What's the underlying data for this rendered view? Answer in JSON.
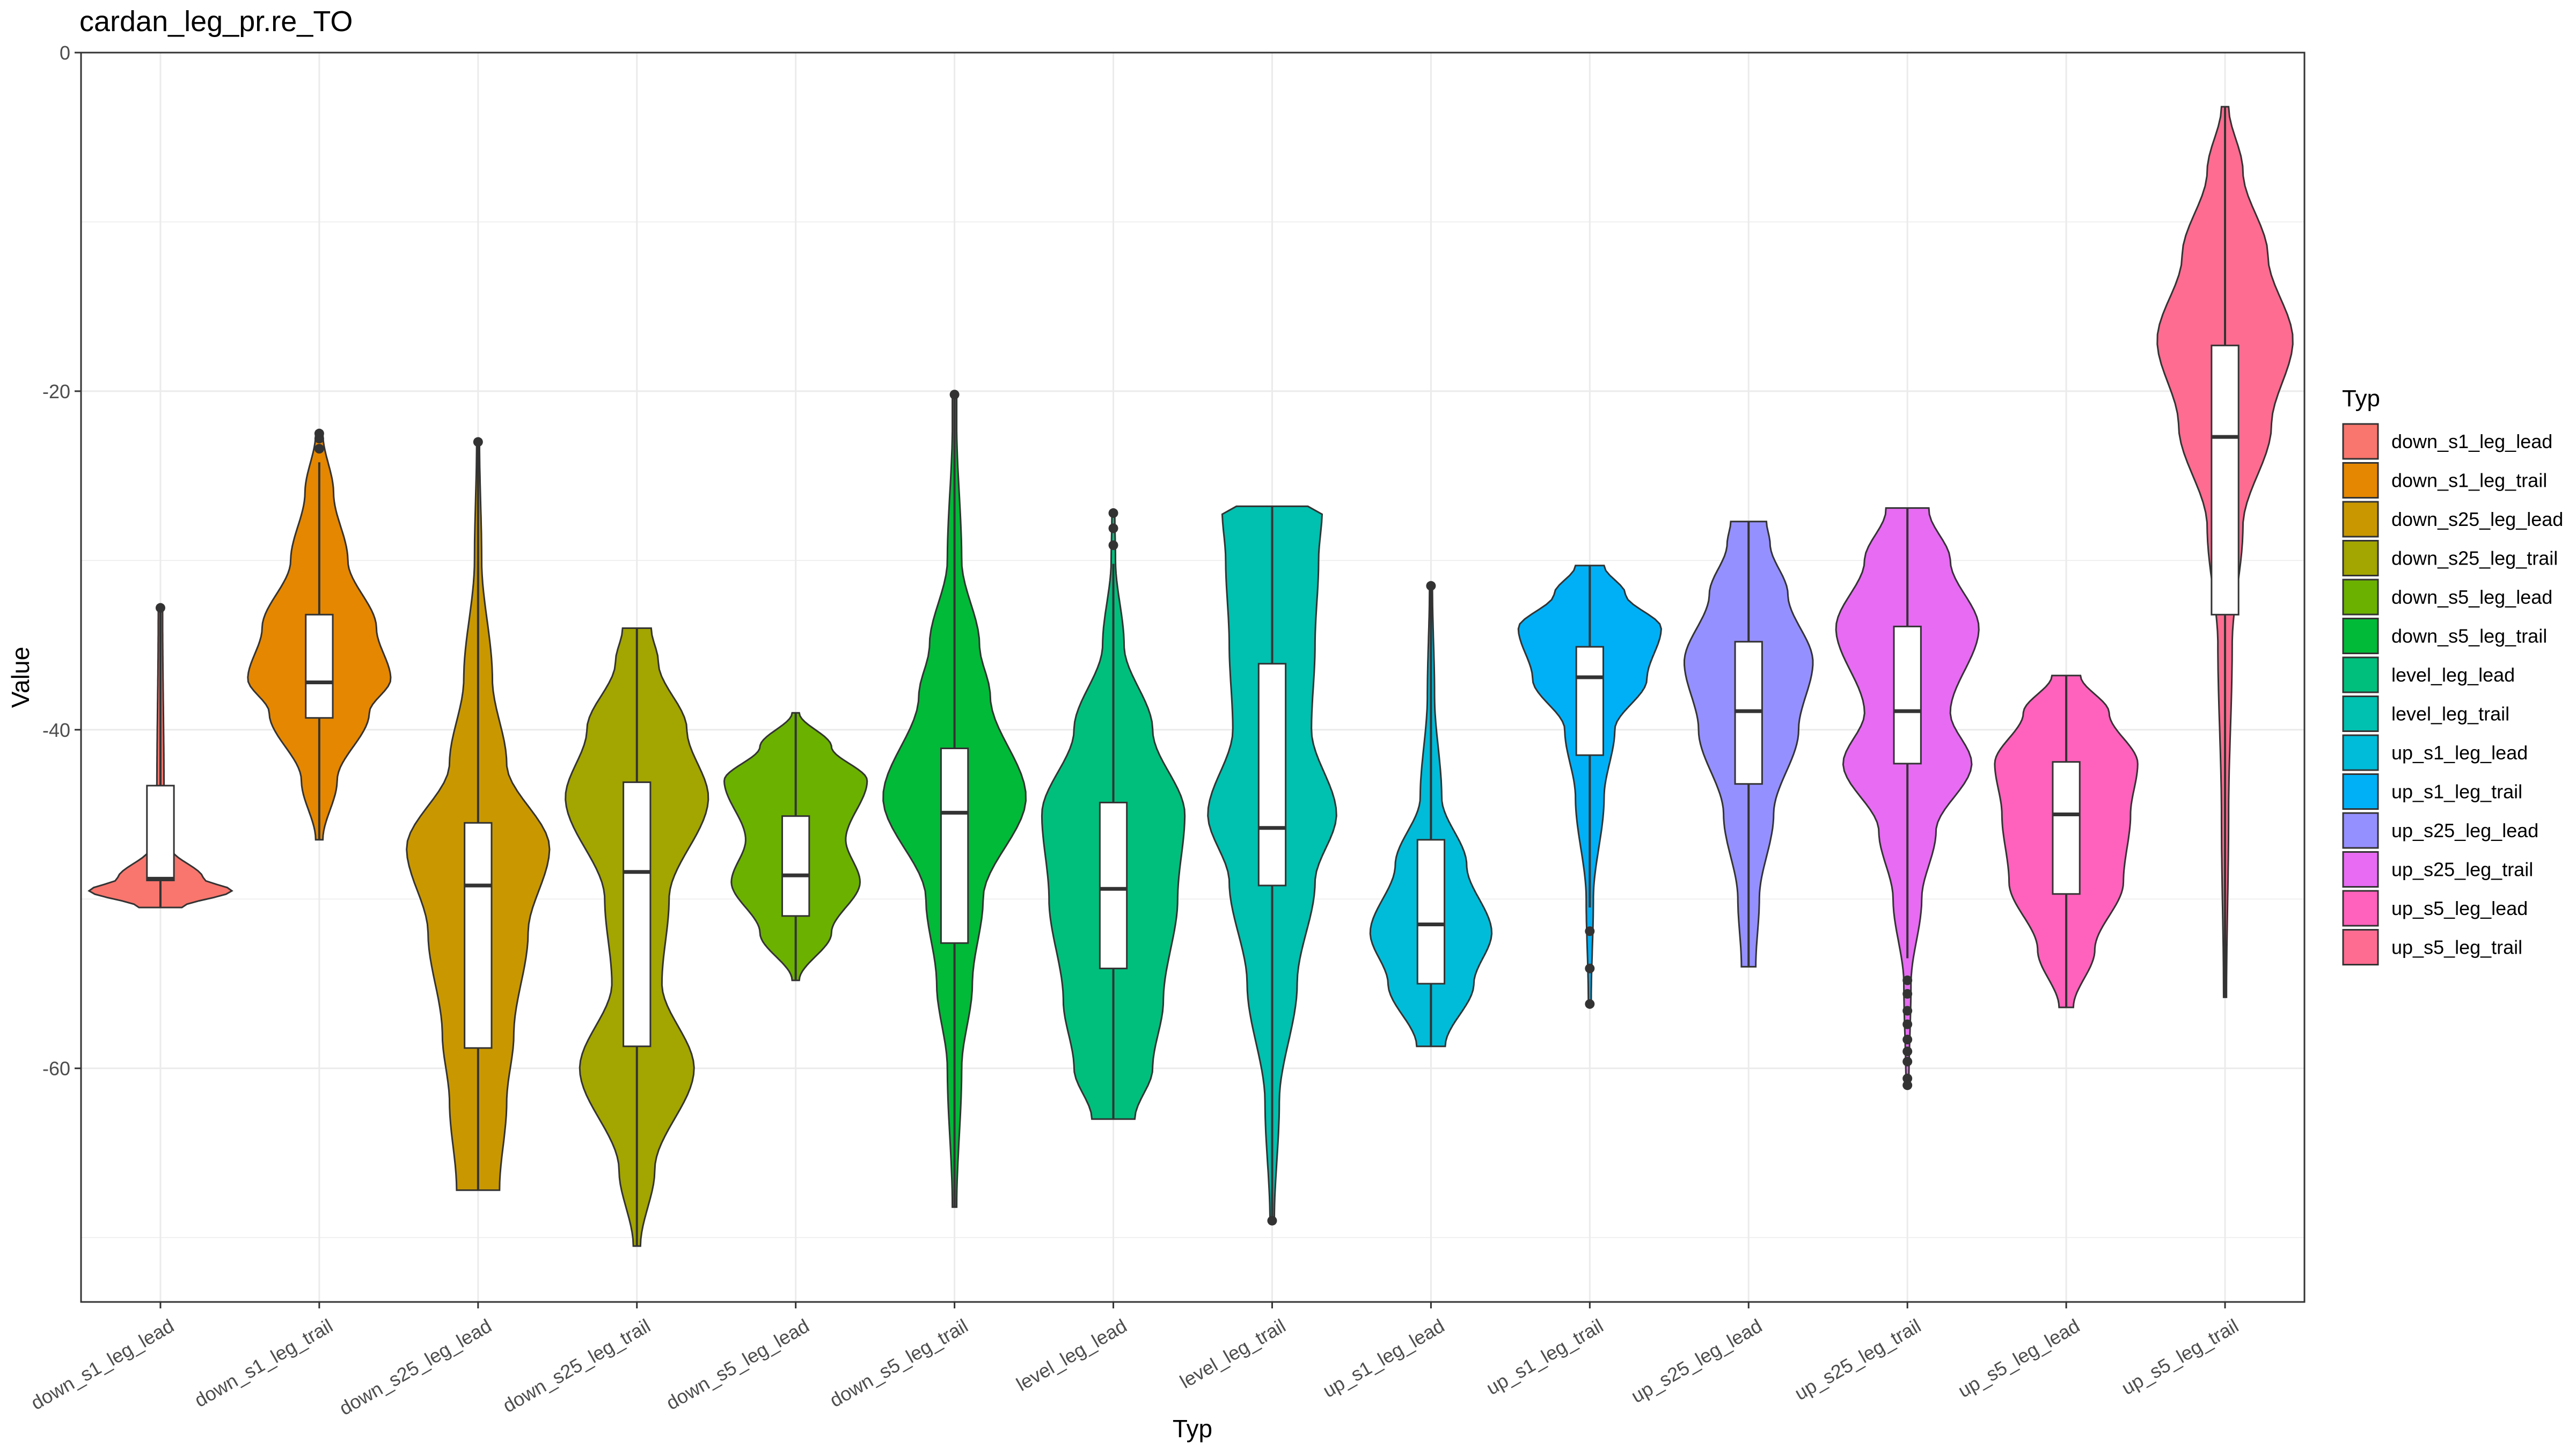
{
  "chart_data": {
    "type": "violin",
    "title": "cardan_leg_pr.re_TO",
    "xlabel": "Typ",
    "ylabel": "Value",
    "ylim": [
      -73.8,
      0
    ],
    "y_ticks": [
      0,
      -20,
      -40,
      -60
    ],
    "grid": true,
    "legend": {
      "title": "Typ",
      "position": "right"
    },
    "categories": [
      "down_s1_leg_lead",
      "down_s1_leg_trail",
      "down_s25_leg_lead",
      "down_s25_leg_trail",
      "down_s5_leg_lead",
      "down_s5_leg_trail",
      "level_leg_lead",
      "level_leg_trail",
      "up_s1_leg_lead",
      "up_s1_leg_trail",
      "up_s25_leg_lead",
      "up_s25_leg_trail",
      "up_s5_leg_lead",
      "up_s5_leg_trail"
    ],
    "series": [
      {
        "name": "down_s1_leg_lead",
        "color": "#F8766D",
        "min": -50.5,
        "max": -32.8,
        "q1": -48.9,
        "median": -48.8,
        "q3": -43.3,
        "whisker_low": -50.5,
        "whisker_high": -32.8,
        "outliers": [
          -32.8
        ],
        "density": [
          [
            -50.5,
            0.3
          ],
          [
            -49.5,
            1.0
          ],
          [
            -48.8,
            0.6
          ],
          [
            -47,
            0.15
          ],
          [
            -44,
            0.05
          ],
          [
            -33,
            0.03
          ]
        ]
      },
      {
        "name": "down_s1_leg_trail",
        "color": "#E58700",
        "min": -46.5,
        "max": -22.5,
        "q1": -39.3,
        "median": -37.2,
        "q3": -33.2,
        "whisker_low": -46.5,
        "whisker_high": -24.2,
        "outliers": [
          -22.5,
          -22.8,
          -23.4
        ],
        "density": [
          [
            -46.5,
            0.05
          ],
          [
            -43,
            0.25
          ],
          [
            -39,
            0.7
          ],
          [
            -37,
            1.0
          ],
          [
            -34,
            0.8
          ],
          [
            -30,
            0.4
          ],
          [
            -26,
            0.2
          ],
          [
            -22.5,
            0.05
          ]
        ]
      },
      {
        "name": "down_s25_leg_lead",
        "color": "#C99800",
        "min": -67.2,
        "max": -23.0,
        "q1": -58.8,
        "median": -49.2,
        "q3": -45.5,
        "whisker_low": -67.2,
        "whisker_high": -23.0,
        "outliers": [
          -23.0
        ],
        "density": [
          [
            -67.2,
            0.3
          ],
          [
            -62,
            0.4
          ],
          [
            -58,
            0.5
          ],
          [
            -52,
            0.7
          ],
          [
            -47,
            1.0
          ],
          [
            -42,
            0.4
          ],
          [
            -37,
            0.2
          ],
          [
            -30,
            0.05
          ],
          [
            -23,
            0.02
          ]
        ]
      },
      {
        "name": "down_s25_leg_trail",
        "color": "#A3A500",
        "min": -70.5,
        "max": -34.0,
        "q1": -58.7,
        "median": -48.4,
        "q3": -43.1,
        "whisker_low": -70.5,
        "whisker_high": -34.0,
        "outliers": [],
        "density": [
          [
            -70.5,
            0.05
          ],
          [
            -66,
            0.25
          ],
          [
            -60,
            0.8
          ],
          [
            -55,
            0.35
          ],
          [
            -50,
            0.45
          ],
          [
            -44,
            1.0
          ],
          [
            -40,
            0.7
          ],
          [
            -36,
            0.3
          ],
          [
            -34,
            0.2
          ]
        ]
      },
      {
        "name": "down_s5_leg_lead",
        "color": "#6BB100",
        "min": -54.8,
        "max": -39.0,
        "q1": -51.0,
        "median": -48.6,
        "q3": -45.1,
        "whisker_low": -54.8,
        "whisker_high": -39.0,
        "outliers": [],
        "density": [
          [
            -54.8,
            0.05
          ],
          [
            -52,
            0.5
          ],
          [
            -49,
            0.9
          ],
          [
            -46.5,
            0.7
          ],
          [
            -43,
            1.0
          ],
          [
            -41,
            0.5
          ],
          [
            -39,
            0.05
          ]
        ]
      },
      {
        "name": "down_s5_leg_trail",
        "color": "#00BA38",
        "min": -68.2,
        "max": -20.2,
        "q1": -52.6,
        "median": -44.9,
        "q3": -41.1,
        "whisker_low": -68.2,
        "whisker_high": -20.2,
        "outliers": [
          -20.2
        ],
        "density": [
          [
            -68.2,
            0.03
          ],
          [
            -60,
            0.1
          ],
          [
            -55,
            0.25
          ],
          [
            -50,
            0.4
          ],
          [
            -44,
            1.0
          ],
          [
            -38,
            0.5
          ],
          [
            -35,
            0.35
          ],
          [
            -30,
            0.1
          ],
          [
            -22,
            0.03
          ]
        ]
      },
      {
        "name": "level_leg_lead",
        "color": "#00BF7D",
        "min": -63.0,
        "max": -27.2,
        "q1": -54.1,
        "median": -49.4,
        "q3": -44.3,
        "whisker_low": -63.0,
        "whisker_high": -30.2,
        "outliers": [
          -27.2,
          -28.1,
          -29.1
        ],
        "density": [
          [
            -63,
            0.3
          ],
          [
            -60,
            0.55
          ],
          [
            -56,
            0.7
          ],
          [
            -50,
            0.9
          ],
          [
            -45,
            1.0
          ],
          [
            -40,
            0.55
          ],
          [
            -35,
            0.15
          ],
          [
            -30,
            0.03
          ],
          [
            -27.2,
            0.02
          ]
        ]
      },
      {
        "name": "level_leg_trail",
        "color": "#00C0AF",
        "min": -69.0,
        "max": -26.8,
        "q1": -49.2,
        "median": -45.8,
        "q3": -36.1,
        "whisker_low": -69.0,
        "whisker_high": -26.8,
        "outliers": [
          -69.0
        ],
        "density": [
          [
            -69,
            0.03
          ],
          [
            -62,
            0.1
          ],
          [
            -55,
            0.35
          ],
          [
            -49,
            0.6
          ],
          [
            -45,
            0.9
          ],
          [
            -40,
            0.55
          ],
          [
            -35,
            0.6
          ],
          [
            -30,
            0.65
          ],
          [
            -27,
            0.7
          ],
          [
            -26.8,
            0.5
          ]
        ]
      },
      {
        "name": "up_s1_leg_lead",
        "color": "#00BCD8",
        "min": -58.7,
        "max": -31.5,
        "q1": -55.0,
        "median": -51.5,
        "q3": -46.5,
        "whisker_low": -58.7,
        "whisker_high": -31.5,
        "outliers": [
          -31.5
        ],
        "density": [
          [
            -58.7,
            0.2
          ],
          [
            -55,
            0.6
          ],
          [
            -52,
            0.85
          ],
          [
            -48,
            0.5
          ],
          [
            -44,
            0.15
          ],
          [
            -38,
            0.05
          ],
          [
            -31.5,
            0.02
          ]
        ]
      },
      {
        "name": "up_s1_leg_trail",
        "color": "#00B0F6",
        "min": -56.2,
        "max": -30.3,
        "q1": -41.5,
        "median": -36.9,
        "q3": -35.1,
        "whisker_low": -50.5,
        "whisker_high": -30.3,
        "outliers": [
          -51.9,
          -54.1,
          -56.2
        ],
        "density": [
          [
            -56,
            0.02
          ],
          [
            -50,
            0.05
          ],
          [
            -44,
            0.2
          ],
          [
            -40,
            0.35
          ],
          [
            -37,
            0.8
          ],
          [
            -34,
            1.0
          ],
          [
            -32,
            0.5
          ],
          [
            -30.3,
            0.2
          ]
        ]
      },
      {
        "name": "up_s25_leg_lead",
        "color": "#9590FF",
        "min": -54.0,
        "max": -27.7,
        "q1": -43.2,
        "median": -38.9,
        "q3": -34.8,
        "whisker_low": -54.0,
        "whisker_high": -27.7,
        "outliers": [],
        "density": [
          [
            -54,
            0.1
          ],
          [
            -50,
            0.15
          ],
          [
            -45,
            0.35
          ],
          [
            -40,
            0.7
          ],
          [
            -36,
            0.9
          ],
          [
            -32,
            0.55
          ],
          [
            -29,
            0.3
          ],
          [
            -27.7,
            0.25
          ]
        ]
      },
      {
        "name": "up_s25_leg_trail",
        "color": "#E76BF3",
        "min": -61.0,
        "max": -26.9,
        "q1": -42.0,
        "median": -38.9,
        "q3": -33.9,
        "whisker_low": -53.5,
        "whisker_high": -26.9,
        "outliers": [
          -54.8,
          -55.6,
          -56.6,
          -57.4,
          -58.3,
          -59.0,
          -59.6,
          -60.6,
          -61.0
        ],
        "density": [
          [
            -61,
            0.02
          ],
          [
            -55,
            0.05
          ],
          [
            -50,
            0.2
          ],
          [
            -46,
            0.4
          ],
          [
            -42,
            0.9
          ],
          [
            -39,
            0.6
          ],
          [
            -34,
            1.0
          ],
          [
            -30,
            0.6
          ],
          [
            -27,
            0.3
          ]
        ]
      },
      {
        "name": "up_s5_leg_lead",
        "color": "#FF62BC",
        "min": -56.4,
        "max": -36.8,
        "q1": -49.7,
        "median": -45.0,
        "q3": -41.9,
        "whisker_low": -56.4,
        "whisker_high": -36.8,
        "outliers": [],
        "density": [
          [
            -56.4,
            0.1
          ],
          [
            -53,
            0.4
          ],
          [
            -49,
            0.8
          ],
          [
            -45,
            0.9
          ],
          [
            -42,
            1.0
          ],
          [
            -39,
            0.6
          ],
          [
            -36.8,
            0.2
          ]
        ]
      },
      {
        "name": "up_s5_leg_trail",
        "color": "#FF6C91",
        "min": -55.8,
        "max": -3.2,
        "q1": -33.2,
        "median": -22.7,
        "q3": -17.3,
        "whisker_low": -55.8,
        "whisker_high": -3.2,
        "outliers": [],
        "density": [
          [
            -55.8,
            0.02
          ],
          [
            -45,
            0.05
          ],
          [
            -35,
            0.1
          ],
          [
            -28,
            0.25
          ],
          [
            -22,
            0.65
          ],
          [
            -17,
            0.95
          ],
          [
            -12,
            0.6
          ],
          [
            -7,
            0.25
          ],
          [
            -3.2,
            0.05
          ]
        ]
      }
    ]
  }
}
